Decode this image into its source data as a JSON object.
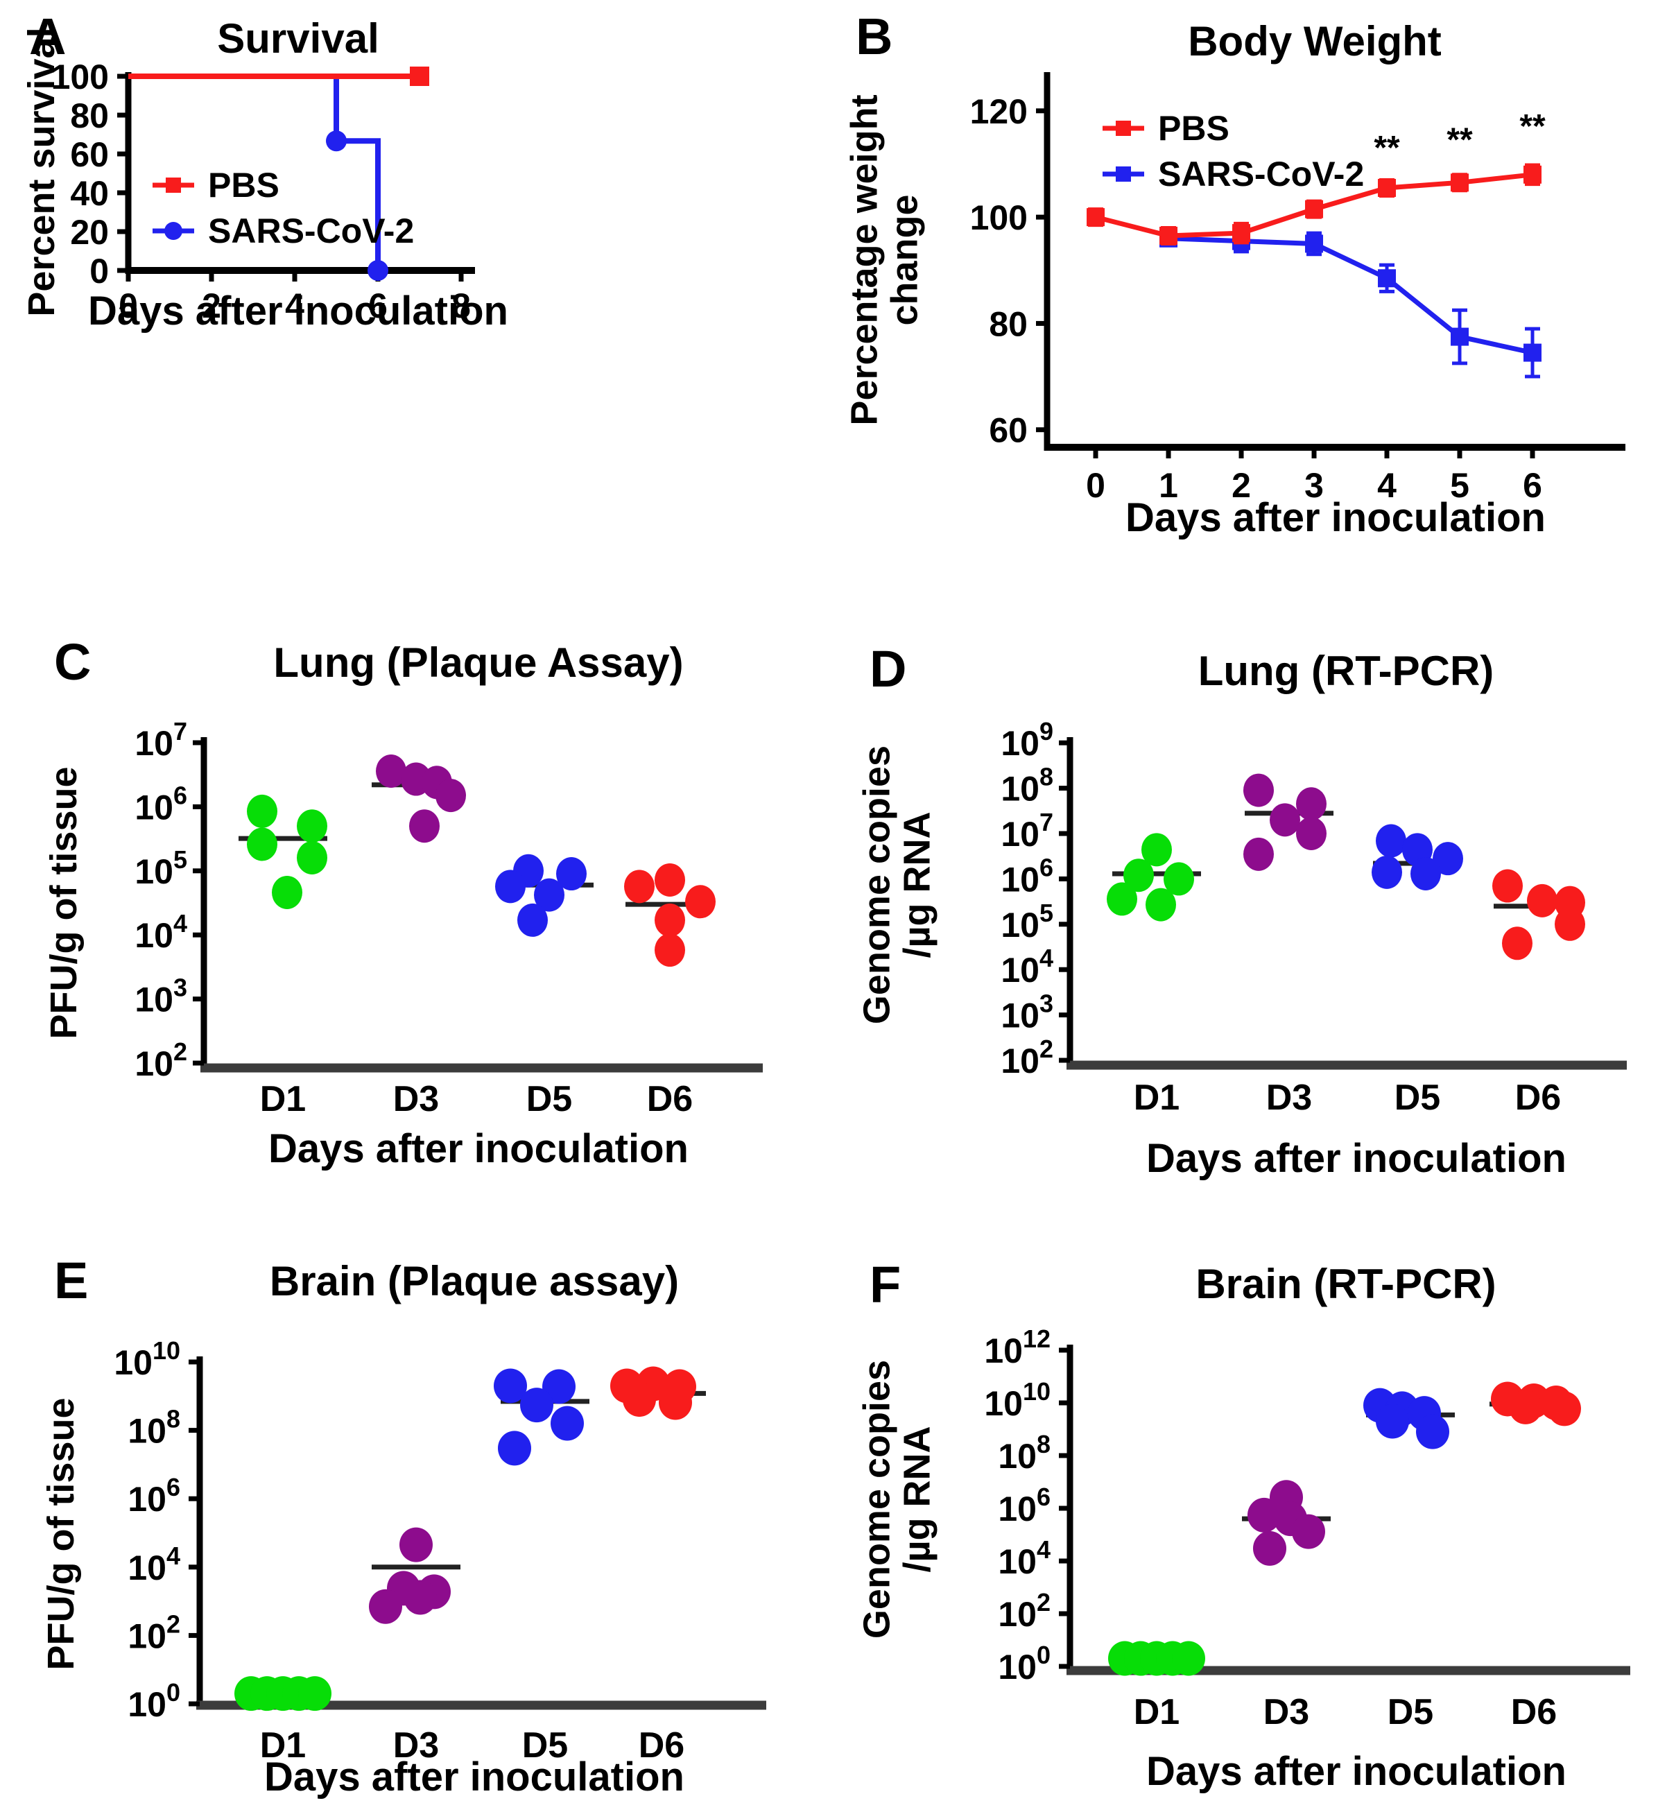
{
  "figure": {
    "description": "Six-panel virology figure: survival, body weight, and viral titers in lung and brain after SARS-CoV-2 inoculation"
  },
  "colors": {
    "red": "#f81c1c",
    "blue": "#2121ee",
    "green": "#07dd07",
    "purple": "#8d0c8d",
    "axis_black": "#000000",
    "baseline_gray": "#3c3c3c",
    "median_dark": "#222222"
  },
  "panels": {
    "A": {
      "letter": "A"
    },
    "B": {
      "letter": "B"
    },
    "C": {
      "letter": "C"
    },
    "D": {
      "letter": "D"
    },
    "E": {
      "letter": "E"
    },
    "F": {
      "letter": "F"
    }
  },
  "chart_data": {
    "survival": {
      "type": "line",
      "title": "Survival",
      "xlabel": "Days after inoculation",
      "ylabel": "Percent survival",
      "xlim": [
        0,
        8
      ],
      "ylim": [
        0,
        100
      ],
      "x_ticks": [
        0,
        2,
        4,
        6,
        8
      ],
      "y_ticks": [
        0,
        20,
        40,
        60,
        80,
        100
      ],
      "legend_position": "inside-left",
      "series": [
        {
          "name": "SARS-CoV-2",
          "color": "blue",
          "marker": "circle",
          "points": [
            [
              0,
              100
            ],
            [
              5,
              100
            ],
            [
              5,
              66.7
            ],
            [
              6,
              66.7
            ],
            [
              6,
              0
            ]
          ],
          "markers_at": [
            [
              5,
              66.7
            ],
            [
              6,
              0
            ]
          ]
        },
        {
          "name": "PBS",
          "color": "red",
          "marker": "square",
          "points": [
            [
              0,
              100
            ],
            [
              7,
              100
            ]
          ],
          "markers_at": [
            [
              7,
              100
            ]
          ]
        }
      ]
    },
    "body_weight": {
      "type": "line",
      "title": "Body Weight",
      "xlabel": "Days after inoculation",
      "ylabel_line1": "Percentage weight",
      "ylabel_line2": "change",
      "xlim": [
        -0.667,
        7.2
      ],
      "ylim": [
        56.7,
        126.5
      ],
      "x_ticks": [
        0,
        1,
        2,
        3,
        4,
        5,
        6
      ],
      "y_ticks": [
        60,
        80,
        100,
        120
      ],
      "legend_position": "inside-left",
      "series": [
        {
          "name": "SARS-CoV-2",
          "color": "blue",
          "marker": "square",
          "x": [
            1,
            2,
            3,
            4,
            5,
            6
          ],
          "y": [
            96,
            95.5,
            95,
            88.5,
            77.5,
            74.5
          ],
          "err": [
            1.2,
            2,
            2,
            2.5,
            5,
            4.5
          ]
        },
        {
          "name": "PBS",
          "color": "red",
          "marker": "square",
          "x": [
            0,
            1,
            2,
            3,
            4,
            5,
            6
          ],
          "y": [
            100,
            96.5,
            97,
            101.5,
            105.5,
            106.5,
            108
          ],
          "err": [
            1.5,
            1.5,
            1.8,
            1.5,
            1.5,
            1.5,
            1.8
          ]
        }
      ],
      "annotations": [
        {
          "text": "**",
          "x": 4,
          "y": 111
        },
        {
          "text": "**",
          "x": 5,
          "y": 112.5
        },
        {
          "text": "**",
          "x": 6,
          "y": 115
        }
      ]
    },
    "lung_plaque": {
      "type": "scatter",
      "title": "Lung (Plaque Assay)",
      "xlabel": "Days after inoculation",
      "ylabel": "PFU/g of tissue",
      "yscale": "log",
      "y_ticks_exp": [
        7,
        6,
        5,
        4,
        3,
        2
      ],
      "categories": [
        "D1",
        "D3",
        "D5",
        "D6"
      ],
      "groups": [
        {
          "day": "D1",
          "color": "green",
          "median": 320000.0,
          "points": [
            [
              -30,
              850000.0
            ],
            [
              42,
              500000.0
            ],
            [
              -30,
              260000.0
            ],
            [
              42,
              160000.0
            ],
            [
              6,
              46000.0
            ]
          ]
        },
        {
          "day": "D3",
          "color": "purple",
          "median": 2200000.0,
          "points": [
            [
              -36,
              3600000.0
            ],
            [
              0,
              2700000.0
            ],
            [
              30,
              2400000.0
            ],
            [
              50,
              1500000.0
            ],
            [
              12,
              500000.0
            ]
          ]
        },
        {
          "day": "D5",
          "color": "blue",
          "median": 60000.0,
          "points": [
            [
              -30,
              100000.0
            ],
            [
              32,
              90000.0
            ],
            [
              -56,
              57000.0
            ],
            [
              0,
              42000.0
            ],
            [
              -24,
              17000.0
            ]
          ]
        },
        {
          "day": "D6",
          "color": "red",
          "median": 30000.0,
          "points": [
            [
              0,
              72000.0
            ],
            [
              -44,
              57000.0
            ],
            [
              44,
              33000.0
            ],
            [
              0,
              17000.0
            ],
            [
              0,
              5800.0
            ]
          ]
        }
      ]
    },
    "lung_rtpcr": {
      "type": "scatter",
      "title": "Lung (RT-PCR)",
      "xlabel": "Days after inoculation",
      "ylabel_line1": "Genome copies",
      "ylabel_line2": "/µg RNA",
      "yscale": "log",
      "y_ticks_exp": [
        9,
        8,
        7,
        6,
        5,
        4,
        3,
        2
      ],
      "categories": [
        "D1",
        "D3",
        "D5",
        "D6"
      ],
      "groups": [
        {
          "day": "D1",
          "color": "green",
          "median": 1300000.0,
          "points": [
            [
              0,
              4400000.0
            ],
            [
              -26,
              1200000.0
            ],
            [
              32,
              1000000.0
            ],
            [
              -50,
              360000.0
            ],
            [
              6,
              270000.0
            ]
          ]
        },
        {
          "day": "D3",
          "color": "purple",
          "median": 28000000.0,
          "points": [
            [
              -44,
              90000000.0
            ],
            [
              32,
              45000000.0
            ],
            [
              -6,
              20000000.0
            ],
            [
              32,
              10000000.0
            ],
            [
              -44,
              3500000.0
            ]
          ]
        },
        {
          "day": "D5",
          "color": "blue",
          "median": 2200000.0,
          "points": [
            [
              -38,
              6900000.0
            ],
            [
              0,
              4400000.0
            ],
            [
              44,
              2800000.0
            ],
            [
              -44,
              1400000.0
            ],
            [
              12,
              1300000.0
            ]
          ]
        },
        {
          "day": "D6",
          "color": "red",
          "median": 250000.0,
          "points": [
            [
              -44,
              700000.0
            ],
            [
              6,
              330000.0
            ],
            [
              46,
              300000.0
            ],
            [
              46,
              100000.0
            ],
            [
              -30,
              38000.0
            ]
          ]
        }
      ]
    },
    "brain_plaque": {
      "type": "scatter",
      "title": "Brain (Plaque assay)",
      "xlabel": "Days after inoculation",
      "ylabel": "PFU/g of tissue",
      "yscale": "log",
      "y_ticks_exp": [
        10,
        8,
        6,
        4,
        2,
        0
      ],
      "categories": [
        "D1",
        "D3",
        "D5",
        "D6"
      ],
      "groups": [
        {
          "day": "D1",
          "color": "green",
          "median": null,
          "points": [
            [
              -46,
              2
            ],
            [
              -23,
              2
            ],
            [
              0,
              2
            ],
            [
              23,
              2
            ],
            [
              46,
              2
            ]
          ]
        },
        {
          "day": "D3",
          "color": "purple",
          "median": 10000.0,
          "points": [
            [
              0,
              45000.0
            ],
            [
              -18,
              2400.0
            ],
            [
              26,
              1900.0
            ],
            [
              6,
              1300.0
            ],
            [
              -44,
              700.0
            ]
          ]
        },
        {
          "day": "D5",
          "color": "blue",
          "median": 700000000.0,
          "points": [
            [
              -50,
              2000000000.0
            ],
            [
              20,
              1900000000.0
            ],
            [
              -12,
              550000000.0
            ],
            [
              32,
              160000000.0
            ],
            [
              -44,
              30000000.0
            ]
          ]
        },
        {
          "day": "D6",
          "color": "red",
          "median": 1200000000.0,
          "points": [
            [
              -50,
              2000000000.0
            ],
            [
              -12,
              2300000000.0
            ],
            [
              26,
              1900000000.0
            ],
            [
              -32,
              800000000.0
            ],
            [
              20,
              650000000.0
            ]
          ]
        }
      ]
    },
    "brain_rtpcr": {
      "type": "scatter",
      "title": "Brain (RT-PCR)",
      "xlabel": "Days after inoculation",
      "ylabel_line1": "Genome copies",
      "ylabel_line2": "/µg RNA",
      "yscale": "log",
      "y_ticks_exp": [
        12,
        10,
        8,
        6,
        4,
        2,
        0
      ],
      "categories": [
        "D1",
        "D3",
        "D5",
        "D6"
      ],
      "groups": [
        {
          "day": "D1",
          "color": "green",
          "median": null,
          "points": [
            [
              -46,
              2
            ],
            [
              -23,
              2
            ],
            [
              0,
              2
            ],
            [
              23,
              2
            ],
            [
              46,
              2
            ]
          ]
        },
        {
          "day": "D3",
          "color": "purple",
          "median": 400000.0,
          "points": [
            [
              0,
              2600000.0
            ],
            [
              -32,
              550000.0
            ],
            [
              6,
              400000.0
            ],
            [
              32,
              130000.0
            ],
            [
              -24,
              30000.0
            ]
          ]
        },
        {
          "day": "D5",
          "color": "blue",
          "median": 3500000000.0,
          "points": [
            [
              -44,
              8000000000.0
            ],
            [
              -12,
              6000000000.0
            ],
            [
              20,
              4000000000.0
            ],
            [
              -26,
              2000000000.0
            ],
            [
              32,
              800000000.0
            ]
          ]
        },
        {
          "day": "D6",
          "color": "red",
          "median": 9000000000.0,
          "points": [
            [
              -38,
              14000000000.0
            ],
            [
              0,
              12000000000.0
            ],
            [
              32,
              10000000000.0
            ],
            [
              -12,
              7000000000.0
            ],
            [
              44,
              6000000000.0
            ]
          ]
        }
      ]
    }
  }
}
